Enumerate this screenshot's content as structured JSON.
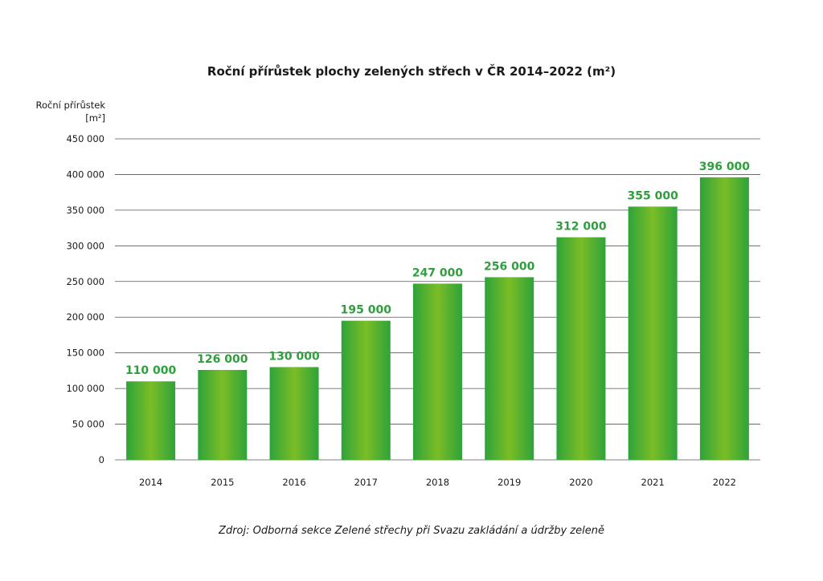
{
  "chart_data": {
    "type": "bar",
    "title": "Roční přírůstek plochy zelených střech v ČR 2014–2022 (m²)",
    "ylabel": [
      "Roční přírůstek",
      "[m²]"
    ],
    "xlabel": "",
    "ylim": [
      0,
      450000
    ],
    "yticks": [
      0,
      50000,
      100000,
      150000,
      200000,
      250000,
      300000,
      350000,
      400000,
      450000
    ],
    "ytick_labels": [
      "0",
      "50 000",
      "100 000",
      "150 000",
      "200 000",
      "250 000",
      "300 000",
      "350 000",
      "400 000",
      "450 000"
    ],
    "categories": [
      "2014",
      "2015",
      "2016",
      "2017",
      "2018",
      "2019",
      "2020",
      "2021",
      "2022"
    ],
    "values": [
      110000,
      126000,
      130000,
      195000,
      247000,
      256000,
      312000,
      355000,
      396000
    ],
    "value_labels": [
      "110 000",
      "126 000",
      "130 000",
      "195 000",
      "247 000",
      "256 000",
      "312 000",
      "355 000",
      "396 000"
    ],
    "grid": true,
    "legend": "none",
    "source": "Zdroj: Odborná sekce Zelené střechy při Svazu zakládání a údržby zeleně",
    "colors": {
      "bar_edge": "#2ea33a",
      "bar_center": "#7bbd26",
      "value_label": "#2f9e3d",
      "grid": "#555555",
      "text": "#1a1a1a"
    }
  }
}
